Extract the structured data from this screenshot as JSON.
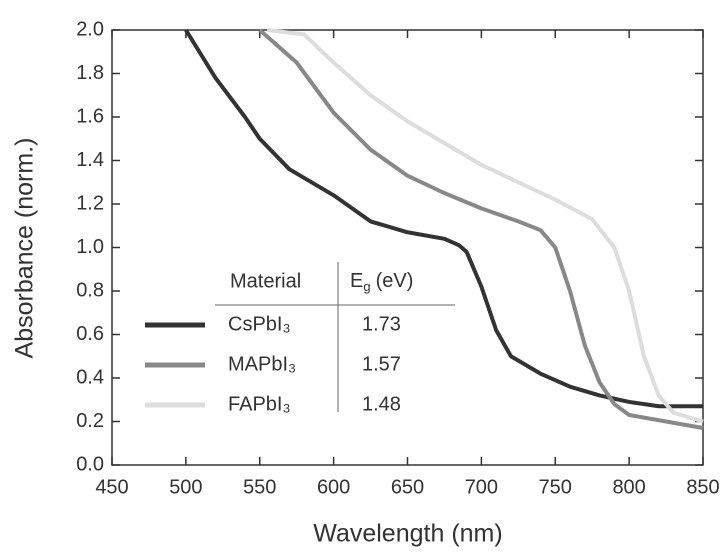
{
  "chart_data": {
    "type": "line",
    "x_label": "Wavelength (nm)",
    "y_label": "Absorbance (norm.)",
    "xlim": [
      450,
      850
    ],
    "xticks": [
      450,
      500,
      550,
      600,
      650,
      700,
      750,
      800,
      850
    ],
    "ylim": [
      0,
      2
    ],
    "yticks": [
      {
        "value": 0,
        "label": "0.0"
      },
      0.2,
      0.4,
      0.6,
      0.8,
      {
        "value": 1,
        "label": "1.0"
      },
      1.2,
      1.4,
      1.6,
      1.8,
      {
        "value": 2,
        "label": "2.0"
      }
    ],
    "legend": {
      "header": [
        "Material",
        {
          "symbol": "E",
          "subscript": "g",
          "unit": "(eV)"
        }
      ]
    },
    "series": [
      {
        "name": "CsPbI₃",
        "color": "#333333",
        "bandgap": 1.73,
        "x": [
          500,
          520,
          540,
          550,
          570,
          600,
          625,
          650,
          675,
          685,
          690,
          700,
          710,
          720,
          740,
          760,
          780,
          800,
          820,
          850
        ],
        "values": [
          2.0,
          1.78,
          1.6,
          1.5,
          1.36,
          1.24,
          1.12,
          1.07,
          1.04,
          1.01,
          0.98,
          0.82,
          0.62,
          0.5,
          0.42,
          0.36,
          0.32,
          0.29,
          0.27,
          0.27
        ]
      },
      {
        "name": "MAPbI₃",
        "color": "#888888",
        "bandgap": 1.57,
        "x": [
          550,
          575,
          600,
          625,
          650,
          675,
          700,
          725,
          740,
          750,
          760,
          770,
          780,
          790,
          800,
          825,
          850
        ],
        "values": [
          2.0,
          1.85,
          1.62,
          1.45,
          1.33,
          1.25,
          1.18,
          1.12,
          1.08,
          1.0,
          0.8,
          0.55,
          0.38,
          0.28,
          0.23,
          0.2,
          0.17
        ]
      },
      {
        "name": "FAPbI₃",
        "color": "#dddddd",
        "bandgap": 1.48,
        "x": [
          555,
          580,
          600,
          625,
          650,
          675,
          700,
          725,
          750,
          775,
          790,
          800,
          810,
          820,
          830,
          850
        ],
        "values": [
          2.0,
          1.98,
          1.85,
          1.7,
          1.58,
          1.48,
          1.38,
          1.3,
          1.22,
          1.13,
          1.0,
          0.8,
          0.5,
          0.32,
          0.24,
          0.2
        ]
      }
    ]
  }
}
